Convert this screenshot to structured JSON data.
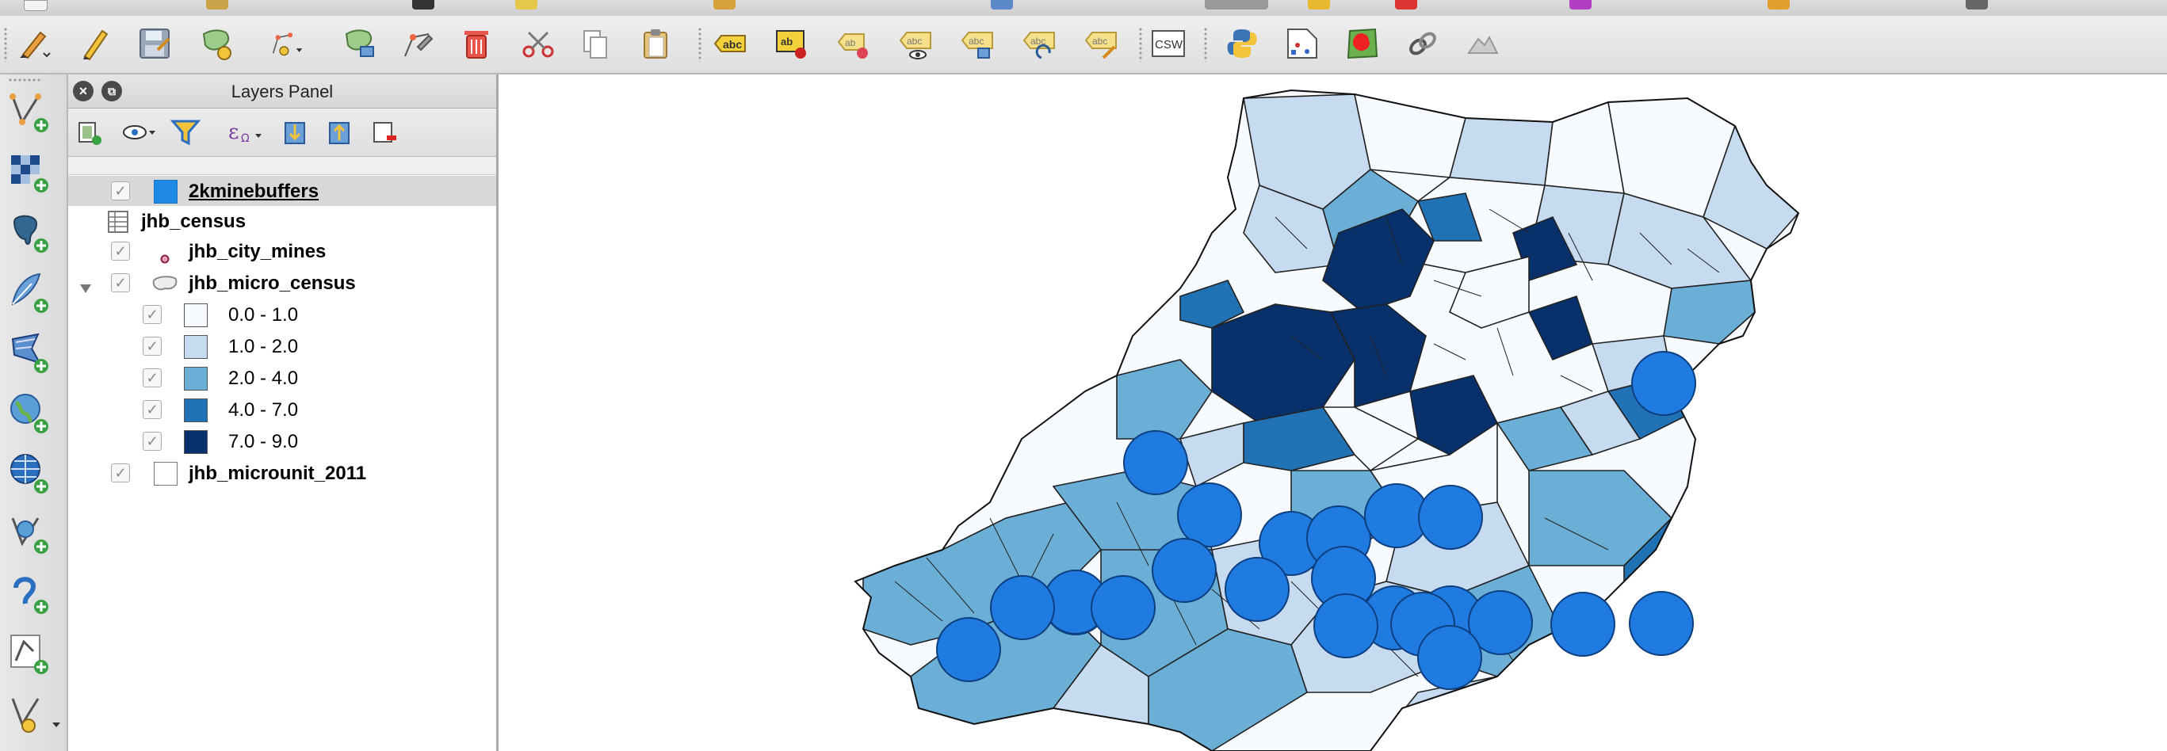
{
  "layers_panel": {
    "title": "Layers Panel",
    "layers": [
      {
        "name": "2kminebuffers",
        "checked": true,
        "swatch": "#1e88e5",
        "selected": true
      },
      {
        "name": "jhb_census",
        "type": "table"
      },
      {
        "name": "jhb_city_mines",
        "checked": true,
        "symbol": "point-icon"
      },
      {
        "name": "jhb_micro_census",
        "checked": true,
        "expanded": true,
        "symbol": "polygon-icon",
        "classes": [
          {
            "label": "0.0 - 1.0",
            "color": "#f7fbff",
            "checked": true
          },
          {
            "label": "1.0 - 2.0",
            "color": "#c6dbef",
            "checked": true
          },
          {
            "label": "2.0 - 4.0",
            "color": "#6baed6",
            "checked": true
          },
          {
            "label": "4.0 - 7.0",
            "color": "#2171b5",
            "checked": true
          },
          {
            "label": "7.0 - 9.0",
            "color": "#08306b",
            "checked": true
          }
        ]
      },
      {
        "name": "jhb_microunit_2011",
        "checked": true,
        "swatch": "#ffffff"
      }
    ]
  },
  "toolbar": {
    "csw_label": "CSW",
    "abc_label": "abc",
    "ab_label": "ab"
  },
  "colors": {
    "buffer": "#1f7be0",
    "c1": "#f7fbff",
    "c2": "#c6dbef",
    "c3": "#6baed6",
    "c4": "#2171b5",
    "c5": "#08306b"
  }
}
